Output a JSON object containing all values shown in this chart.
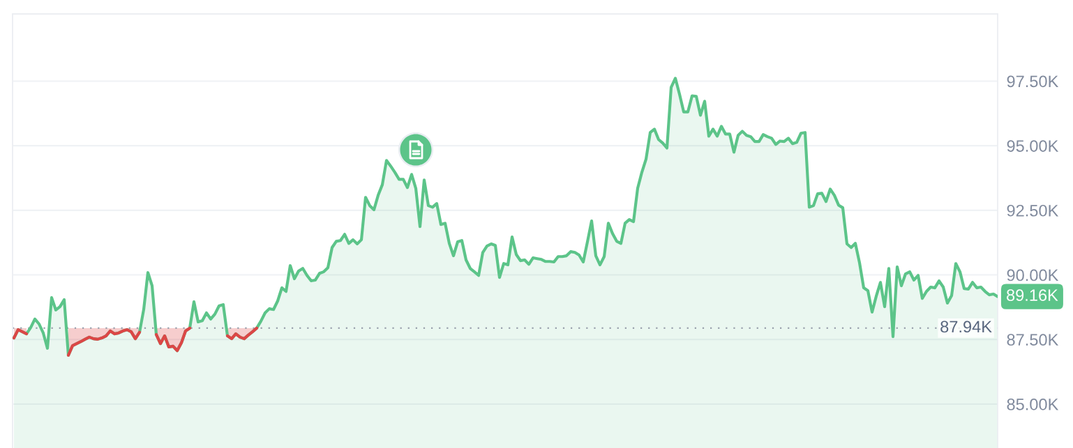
{
  "chart_data": {
    "type": "area",
    "categories": [
      null,
      null,
      null,
      null,
      null,
      null,
      null,
      null,
      null,
      null,
      null,
      null,
      null,
      null,
      null,
      null,
      null,
      null,
      null,
      null,
      null,
      null,
      null,
      null,
      null,
      null,
      null,
      null,
      null,
      null,
      null,
      null,
      null,
      null,
      null,
      null,
      null,
      null,
      null,
      null,
      null,
      null,
      null,
      null,
      null,
      null,
      null,
      null,
      null,
      null,
      null,
      null,
      null,
      null,
      null,
      null,
      null,
      null,
      null,
      null,
      null,
      null,
      null,
      null,
      null,
      null,
      null,
      null,
      null,
      null,
      null,
      null,
      null,
      null,
      null,
      null,
      null,
      null,
      null,
      null,
      null,
      null,
      null,
      null,
      null,
      null,
      null,
      null,
      null,
      null,
      null,
      null,
      null,
      null,
      null,
      null,
      null,
      null,
      null,
      null,
      null,
      null,
      null,
      null,
      null,
      null,
      null,
      null,
      null,
      null,
      null,
      null,
      null,
      null,
      null,
      null,
      null,
      null,
      null,
      null,
      null,
      null,
      null,
      null,
      null,
      null,
      null,
      null,
      null,
      null,
      null,
      null,
      null,
      null,
      null,
      null,
      null,
      null,
      null,
      null,
      null,
      null,
      null,
      null,
      null,
      null,
      null,
      null,
      null,
      null,
      null,
      null,
      null,
      null,
      null,
      null,
      null,
      null,
      null,
      null,
      null,
      null,
      null,
      null,
      null,
      null,
      null,
      null,
      null,
      null,
      null,
      null,
      null,
      null,
      null,
      null,
      null,
      null,
      null,
      null,
      null,
      null,
      null,
      null,
      null,
      null,
      null,
      null,
      null,
      null,
      null,
      null,
      null,
      null,
      null,
      null,
      null,
      null,
      null,
      null,
      null,
      null,
      null,
      null,
      null,
      null,
      null,
      null,
      null,
      null,
      null,
      null,
      null,
      null,
      null,
      null,
      null,
      null,
      null,
      null,
      null,
      null,
      null,
      null,
      null,
      null,
      null,
      null,
      null,
      null,
      null,
      null,
      null,
      null,
      null,
      null
    ],
    "series": [
      {
        "color": "#5cc489",
        "values": [
          87.56,
          87.88,
          87.8,
          87.72,
          87.96,
          88.29,
          88.1,
          87.75,
          87.16,
          89.12,
          88.64,
          88.77,
          89.04,
          86.89,
          87.26,
          87.34,
          87.42,
          87.51,
          87.59,
          87.53,
          87.51,
          87.56,
          87.64,
          87.83,
          87.72,
          87.75,
          87.83,
          87.88,
          87.8,
          87.53,
          87.78,
          88.66,
          90.09,
          89.58,
          87.69,
          87.34,
          87.64,
          87.21,
          87.24,
          87.07,
          87.37,
          87.83,
          87.94,
          88.96,
          88.18,
          88.23,
          88.53,
          88.29,
          88.48,
          88.8,
          88.85,
          87.64,
          87.53,
          87.72,
          87.59,
          87.53,
          87.67,
          87.8,
          87.94,
          88.21,
          88.53,
          88.69,
          88.66,
          88.99,
          89.5,
          89.36,
          90.36,
          89.85,
          90.15,
          90.25,
          89.98,
          89.77,
          89.8,
          90.06,
          90.12,
          90.28,
          91.06,
          91.3,
          91.33,
          91.57,
          91.22,
          91.36,
          91.2,
          91.36,
          93.0,
          92.68,
          92.52,
          93.08,
          93.49,
          94.43,
          94.21,
          93.97,
          93.7,
          93.7,
          93.38,
          93.89,
          93.35,
          91.87,
          93.67,
          92.68,
          92.62,
          92.76,
          91.95,
          92.0,
          91.22,
          90.74,
          91.28,
          91.33,
          90.58,
          90.25,
          90.12,
          89.98,
          90.87,
          91.12,
          91.2,
          91.14,
          89.9,
          90.44,
          90.39,
          91.47,
          90.79,
          90.55,
          90.58,
          90.41,
          90.66,
          90.63,
          90.6,
          90.52,
          90.52,
          90.5,
          90.71,
          90.71,
          90.74,
          90.9,
          90.87,
          90.77,
          90.5,
          91.28,
          92.09,
          90.74,
          90.39,
          90.71,
          92.0,
          91.6,
          91.3,
          91.22,
          92.0,
          92.14,
          92.06,
          93.35,
          93.97,
          94.48,
          95.51,
          95.64,
          95.24,
          95.1,
          94.91,
          97.26,
          97.61,
          96.99,
          96.31,
          96.31,
          96.93,
          96.91,
          96.18,
          96.72,
          95.37,
          95.64,
          95.37,
          95.75,
          95.45,
          95.45,
          94.75,
          95.4,
          95.56,
          95.4,
          95.35,
          95.16,
          95.16,
          95.43,
          95.35,
          95.29,
          95.05,
          95.18,
          95.16,
          95.29,
          95.08,
          95.13,
          95.48,
          95.51,
          92.62,
          92.68,
          93.14,
          93.16,
          92.84,
          93.32,
          93.08,
          92.7,
          92.6,
          91.2,
          91.06,
          91.22,
          90.47,
          89.5,
          89.39,
          88.56,
          89.18,
          89.71,
          88.77,
          90.25,
          87.61,
          90.31,
          89.58,
          90.04,
          90.12,
          89.8,
          89.98,
          89.09,
          89.36,
          89.53,
          89.5,
          89.77,
          89.53,
          88.91,
          89.2,
          90.44,
          90.12,
          89.47,
          89.45,
          89.71,
          89.5,
          89.53,
          89.36,
          89.23,
          89.26,
          89.16
        ]
      },
      {
        "type": "line",
        "color": "#dc4646",
        "values": [
          87.56,
          87.88,
          87.8,
          87.72,
          null,
          null,
          null,
          null,
          null,
          null,
          null,
          null,
          null,
          86.89,
          87.26,
          87.34,
          87.42,
          87.51,
          87.59,
          87.53,
          87.51,
          87.56,
          87.64,
          87.83,
          87.72,
          87.75,
          87.83,
          87.88,
          87.8,
          87.53,
          87.78,
          null,
          null,
          null,
          87.69,
          87.34,
          87.64,
          87.21,
          87.24,
          87.07,
          87.37,
          87.83,
          87.94,
          null,
          null,
          null,
          null,
          null,
          null,
          null,
          null,
          87.64,
          87.53,
          87.72,
          87.59,
          87.53,
          87.67,
          87.8,
          87.94,
          null,
          null,
          null,
          null,
          null,
          null,
          null,
          null,
          null,
          null,
          null,
          null,
          null,
          null,
          null,
          null,
          null,
          null,
          null,
          null,
          null,
          null,
          null,
          null,
          null,
          null,
          null,
          null,
          null,
          null,
          null,
          null,
          null,
          null,
          null,
          null,
          null,
          null,
          null,
          null,
          null,
          null,
          null,
          null,
          null,
          null,
          null,
          null,
          null,
          null,
          null,
          null,
          null,
          null,
          null,
          null,
          null,
          null,
          null,
          null,
          null,
          null,
          null,
          null,
          null,
          null,
          null,
          null,
          null,
          null,
          null,
          null,
          null,
          null,
          null,
          null,
          null,
          null,
          null,
          null,
          null,
          null,
          null,
          null,
          null,
          null,
          null,
          null,
          null,
          null,
          null,
          null,
          null,
          null,
          null,
          null,
          null,
          null,
          null,
          null,
          null,
          null,
          null,
          null,
          null,
          null,
          null,
          null,
          null,
          null,
          null,
          null,
          null,
          null,
          null,
          null,
          null,
          null,
          null,
          null,
          null,
          null,
          null,
          null,
          null,
          null,
          null,
          null,
          null,
          null,
          null,
          null,
          null,
          null,
          null,
          null,
          null,
          null,
          null,
          null,
          null,
          null,
          null,
          null,
          null,
          null,
          null,
          null,
          null,
          null,
          null,
          null,
          null,
          null,
          null,
          null,
          null,
          null,
          null,
          null,
          null,
          null,
          null,
          null,
          null,
          null,
          null,
          null,
          null,
          null,
          null,
          null,
          null,
          null,
          null,
          null,
          null
        ],
        "lower": [
          87.56,
          87.88,
          87.8,
          87.72,
          null,
          null,
          null,
          null,
          null,
          null,
          null,
          null,
          null,
          86.89,
          87.26,
          87.34,
          87.42,
          87.51,
          87.59,
          87.53,
          87.51,
          87.56,
          87.64,
          87.83,
          87.72,
          87.75,
          87.83,
          87.88,
          87.8,
          87.53,
          87.78,
          null,
          null,
          null,
          87.69,
          87.34,
          87.64,
          87.21,
          87.24,
          87.07,
          87.37,
          87.83,
          87.94,
          null,
          null,
          null,
          null,
          null,
          null,
          null,
          null,
          87.64,
          87.53,
          87.72,
          87.59,
          87.53,
          87.67,
          87.8,
          87.94,
          null,
          null,
          null,
          null,
          null,
          null,
          null,
          null,
          null,
          null,
          null,
          null,
          null,
          null,
          null,
          null,
          null,
          null,
          null,
          null,
          null,
          null,
          null,
          null,
          null,
          null,
          null,
          null,
          null,
          null,
          null,
          null,
          null,
          null,
          null,
          null,
          null,
          null,
          null,
          null,
          null,
          null,
          null,
          null,
          null,
          null,
          null,
          null,
          null,
          null,
          null,
          null,
          null,
          null,
          null,
          null,
          null,
          null,
          null,
          null,
          null,
          null,
          null,
          null,
          null,
          null,
          null,
          null,
          null,
          null,
          null,
          null,
          null,
          null,
          null,
          null,
          null,
          null,
          null,
          null,
          null,
          null,
          null,
          null,
          null,
          null,
          null,
          null,
          null,
          null,
          null,
          null,
          null,
          null,
          null,
          null,
          null,
          null,
          null,
          null,
          null,
          null,
          null,
          null,
          null,
          null,
          null,
          null,
          null,
          null,
          null,
          null,
          null,
          null,
          null,
          null,
          null,
          null,
          null,
          null,
          null,
          null,
          null,
          null,
          null,
          null,
          null,
          null,
          null,
          null,
          null,
          null,
          null,
          null,
          null,
          null,
          null,
          null,
          null,
          null,
          null,
          null,
          null,
          null,
          null,
          null,
          null,
          null,
          null,
          null,
          null,
          null,
          null,
          null,
          null,
          null,
          null,
          null,
          null,
          null,
          null,
          null,
          null,
          null,
          null,
          null,
          null,
          null,
          null,
          null,
          null,
          null,
          null,
          null,
          null,
          null,
          null
        ],
        "upper": [
          87.94,
          87.94,
          87.94,
          87.94,
          null,
          null,
          null,
          null,
          null,
          null,
          null,
          null,
          null,
          87.94,
          87.94,
          87.94,
          87.94,
          87.94,
          87.94,
          87.94,
          87.94,
          87.94,
          87.94,
          87.94,
          87.94,
          87.94,
          87.94,
          87.94,
          87.94,
          87.94,
          87.94,
          null,
          null,
          null,
          87.94,
          87.94,
          87.94,
          87.94,
          87.94,
          87.94,
          87.94,
          87.94,
          87.94,
          null,
          null,
          null,
          null,
          null,
          null,
          null,
          null,
          87.94,
          87.94,
          87.94,
          87.94,
          87.94,
          87.94,
          87.94,
          87.94,
          null,
          null,
          null,
          null,
          null,
          null,
          null,
          null,
          null,
          null,
          null,
          null,
          null,
          null,
          null,
          null,
          null,
          null,
          null,
          null,
          null,
          null,
          null,
          null,
          null,
          null,
          null,
          null,
          null,
          null,
          null,
          null,
          null,
          null,
          null,
          null,
          null,
          null,
          null,
          null,
          null,
          null,
          null,
          null,
          null,
          null,
          null,
          null,
          null,
          null,
          null,
          null,
          null,
          null,
          null,
          null,
          null,
          null,
          null,
          null,
          null,
          null,
          null,
          null,
          null,
          null,
          null,
          null,
          null,
          null,
          null,
          null,
          null,
          null,
          null,
          null,
          null,
          null,
          null,
          null,
          null,
          null,
          null,
          null,
          null,
          null,
          null,
          null,
          null,
          null,
          null,
          null,
          null,
          null,
          null,
          null,
          null,
          null,
          null,
          null,
          null,
          null,
          null,
          null,
          null,
          null,
          null,
          null,
          null,
          null,
          null,
          null,
          null,
          null,
          null,
          null,
          null,
          null,
          null,
          null,
          null,
          null,
          null,
          null,
          null,
          null,
          null,
          null,
          null,
          null,
          null,
          null,
          null,
          null,
          null,
          null,
          null,
          null,
          null,
          null,
          null,
          null,
          null,
          null,
          null,
          null,
          null,
          null,
          null,
          null,
          null,
          null,
          null,
          null,
          null,
          null,
          null,
          null,
          null,
          null,
          null,
          null,
          null,
          null,
          null,
          null,
          null,
          null,
          null,
          null,
          null,
          null,
          null,
          null,
          null,
          null,
          null
        ]
      }
    ],
    "ylim": [
      83.3,
      100.1
    ],
    "yticks": [
      {
        "value": 85,
        "label": "85.00K"
      },
      {
        "value": 87.5,
        "label": "87.50K"
      },
      {
        "value": 90,
        "label": "90.00K"
      },
      {
        "value": 92.5,
        "label": "92.50K"
      },
      {
        "value": 95,
        "label": "95.00K"
      },
      {
        "value": 97.5,
        "label": "97.50K"
      }
    ],
    "grid": "y",
    "ref_lines": [
      {
        "axis": "y",
        "value": 87.94,
        "label": "87.94K",
        "color": "#9aa1ad",
        "line_style": "dotted"
      }
    ],
    "annotations": [
      "89.16K"
    ]
  }
}
